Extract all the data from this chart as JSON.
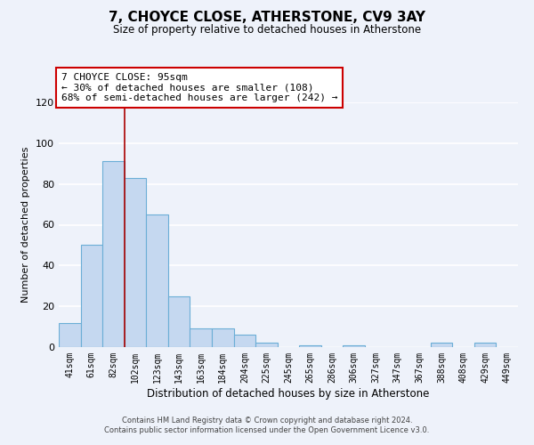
{
  "title": "7, CHOYCE CLOSE, ATHERSTONE, CV9 3AY",
  "subtitle": "Size of property relative to detached houses in Atherstone",
  "xlabel": "Distribution of detached houses by size in Atherstone",
  "ylabel": "Number of detached properties",
  "bin_labels": [
    "41sqm",
    "61sqm",
    "82sqm",
    "102sqm",
    "123sqm",
    "143sqm",
    "163sqm",
    "184sqm",
    "204sqm",
    "225sqm",
    "245sqm",
    "265sqm",
    "286sqm",
    "306sqm",
    "327sqm",
    "347sqm",
    "367sqm",
    "388sqm",
    "408sqm",
    "429sqm",
    "449sqm"
  ],
  "bar_heights": [
    12,
    50,
    91,
    83,
    65,
    25,
    9,
    9,
    6,
    2,
    0,
    1,
    0,
    1,
    0,
    0,
    0,
    2,
    0,
    2,
    0
  ],
  "bar_color": "#c5d8f0",
  "bar_edge_color": "#6baed6",
  "ylim": [
    0,
    120
  ],
  "yticks": [
    0,
    20,
    40,
    60,
    80,
    100,
    120
  ],
  "property_line_x": 2.5,
  "property_line_color": "#aa0000",
  "annotation_title": "7 CHOYCE CLOSE: 95sqm",
  "annotation_line1": "← 30% of detached houses are smaller (108)",
  "annotation_line2": "68% of semi-detached houses are larger (242) →",
  "annotation_box_color": "#cc0000",
  "footer_line1": "Contains HM Land Registry data © Crown copyright and database right 2024.",
  "footer_line2": "Contains public sector information licensed under the Open Government Licence v3.0.",
  "background_color": "#eef2fa"
}
